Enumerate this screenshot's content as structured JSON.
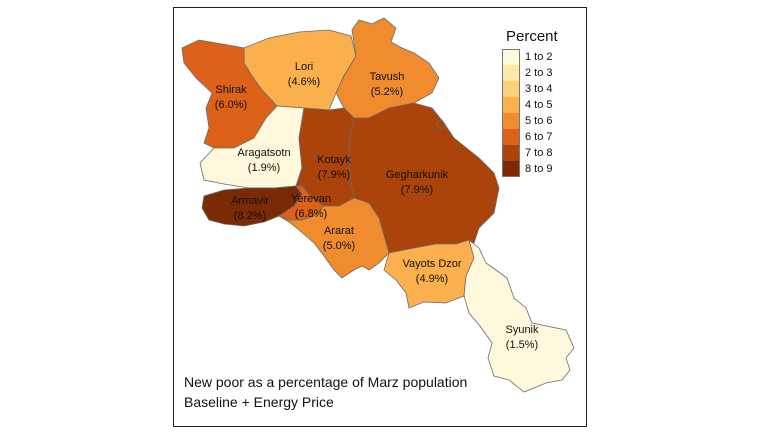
{
  "legend": {
    "title": "Percent",
    "items": [
      {
        "label": "1 to 2",
        "color": "#fff8dc"
      },
      {
        "label": "2 to 3",
        "color": "#fee8a6"
      },
      {
        "label": "3 to 4",
        "color": "#fdd07a"
      },
      {
        "label": "4 to 5",
        "color": "#fbb04d"
      },
      {
        "label": "5 to 6",
        "color": "#f08c2e"
      },
      {
        "label": "6 to 7",
        "color": "#dd6118"
      },
      {
        "label": "7 to 8",
        "color": "#ab430a"
      },
      {
        "label": "8 to 9",
        "color": "#7a2b05"
      }
    ]
  },
  "regions": [
    {
      "name": "Lori",
      "value": "(4.6%)",
      "color": "#fbb04d"
    },
    {
      "name": "Tavush",
      "value": "(5.2%)",
      "color": "#f08c2e"
    },
    {
      "name": "Shirak",
      "value": "(6.0%)",
      "color": "#dd6118"
    },
    {
      "name": "Aragatsotn",
      "value": "(1.9%)",
      "color": "#fff8dc"
    },
    {
      "name": "Kotayk",
      "value": "(7.9%)",
      "color": "#ab430a"
    },
    {
      "name": "Gegharkunik",
      "value": "(7.9%)",
      "color": "#ab430a"
    },
    {
      "name": "Armavir",
      "value": "(8.2%)",
      "color": "#7a2b05"
    },
    {
      "name": "Yerevan",
      "value": "(6.8%)",
      "color": "#dd6118"
    },
    {
      "name": "Ararat",
      "value": "(5.0%)",
      "color": "#f08c2e"
    },
    {
      "name": "Vayots Dzor",
      "value": "(4.9%)",
      "color": "#fbb04d"
    },
    {
      "name": "Syunik",
      "value": "(1.5%)",
      "color": "#fff8dc"
    }
  ],
  "caption": {
    "line1": "New poor as a percentage of Marz population",
    "line2": "Baseline + Energy Price"
  }
}
